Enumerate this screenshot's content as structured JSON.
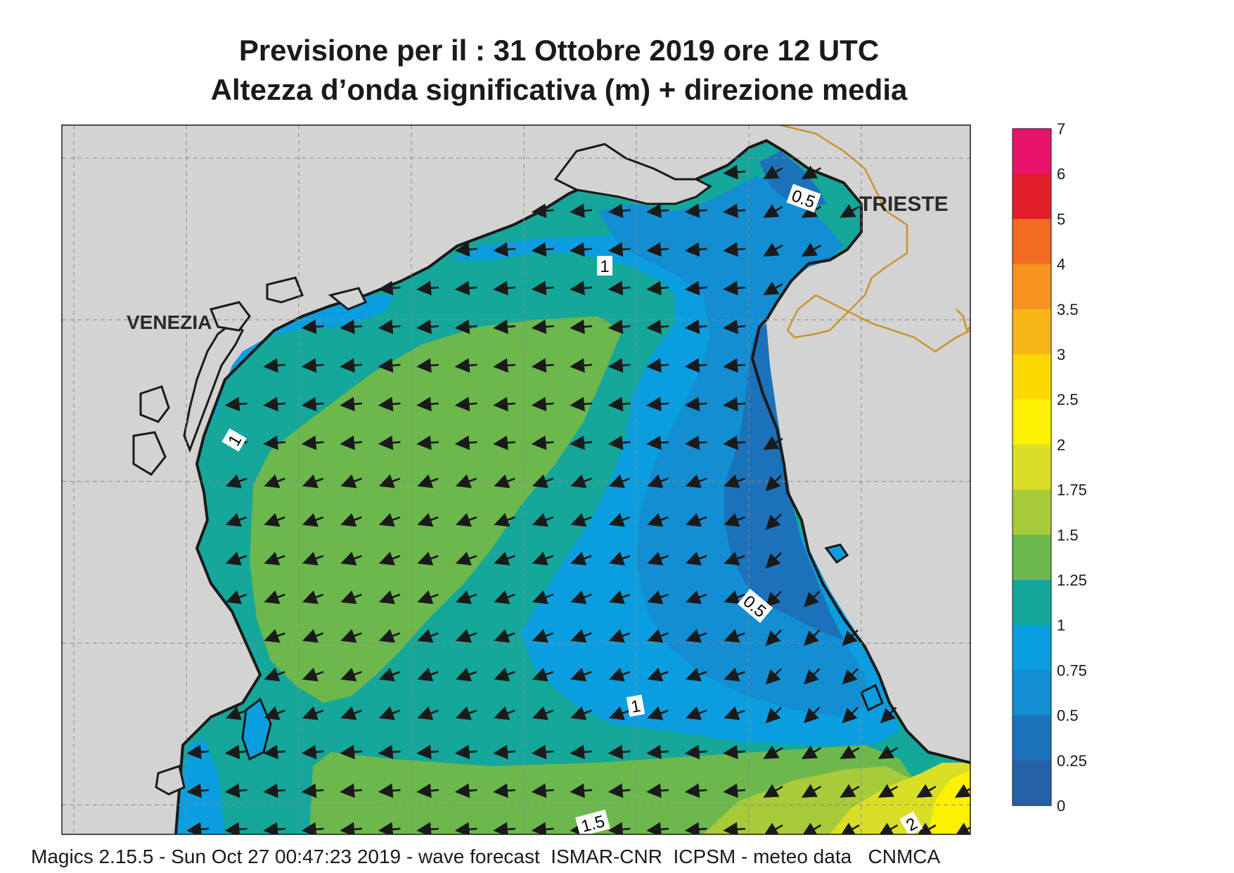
{
  "title_line1": "Previsione per il  :  31  Ottobre  2019   ore 12 UTC",
  "title_line2": "Altezza d’onda significativa (m) + direzione media",
  "footer": "Magics 2.15.5 - Sun Oct 27 00:47:23 2019 - wave forecast  ISMAR-CNR  ICPSM - meteo data   CNMCA",
  "places": [
    {
      "name": "VENEZIA"
    },
    {
      "name": "TRIESTE"
    }
  ],
  "contour_labels": [
    "0.5",
    "1",
    "1",
    "0.5",
    "1",
    "1.5",
    "2"
  ],
  "legend": {
    "ticks": [
      "7",
      "6",
      "5",
      "4",
      "3.5",
      "3",
      "2.5",
      "2",
      "1.75",
      "1.5",
      "1.25",
      "1",
      "0.75",
      "0.5",
      "0.25",
      "0"
    ],
    "colors": [
      "#e8146b",
      "#e31e2a",
      "#f26b22",
      "#f79321",
      "#f8b616",
      "#fbd800",
      "#fdf100",
      "#d9df26",
      "#a8cb3a",
      "#6cb84d",
      "#14a79a",
      "#0a9ee0",
      "#138ed3",
      "#1c72ba",
      "#2762a8"
    ]
  },
  "wave_direction": "toward south-west"
}
